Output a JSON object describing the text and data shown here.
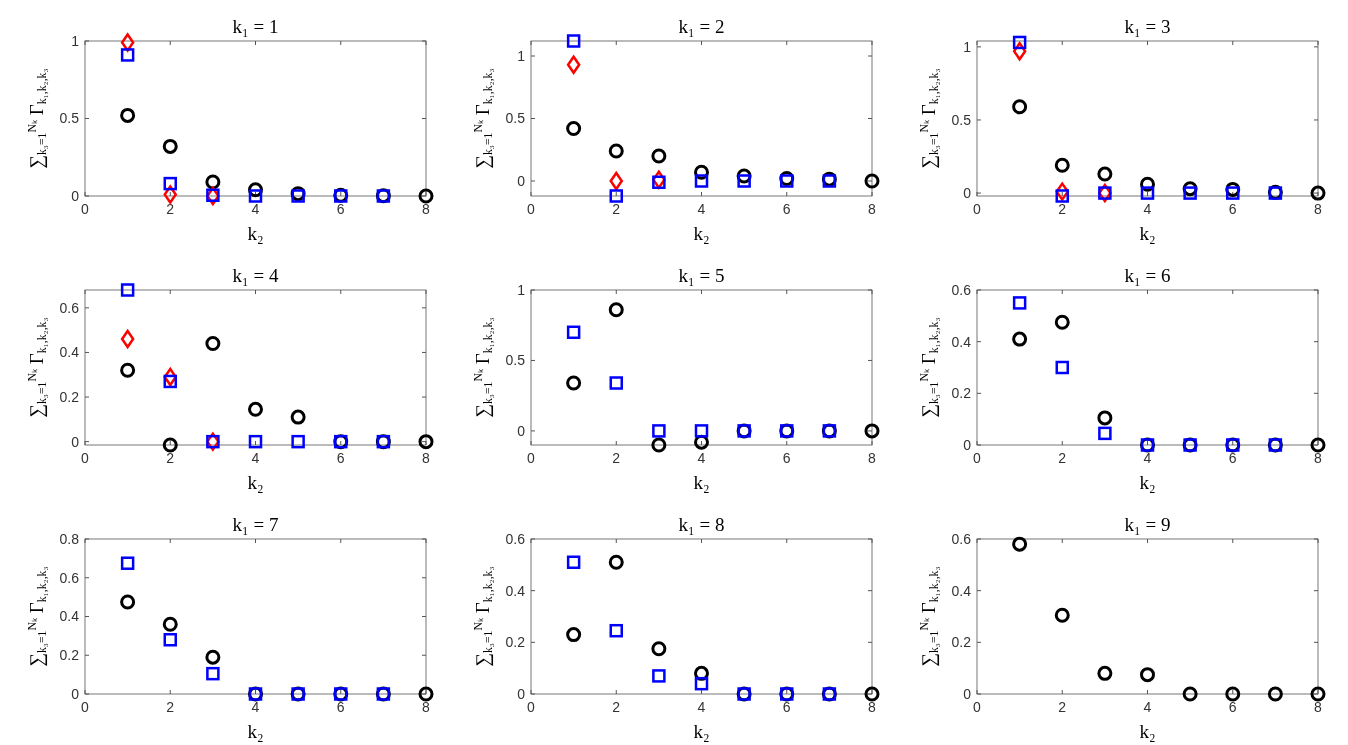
{
  "chart_data": [
    {
      "type": "scatter",
      "title": "k₁ = 1",
      "xlabel": "k₂",
      "ylabel": "∑$_{k₃=1}$$^{Nₖ}$ Γ$_{k₁,k₂,k₃}$",
      "xlim": [
        0,
        8
      ],
      "xticks": [
        0,
        2,
        4,
        6,
        8
      ],
      "ylim": [
        0,
        1
      ],
      "yticks": [
        0,
        0.5,
        1
      ],
      "series": [
        {
          "marker": "circle",
          "color": "#000000",
          "x": [
            1,
            2,
            3,
            4,
            5,
            6,
            7,
            8
          ],
          "values": [
            0.52,
            0.32,
            0.09,
            0.04,
            0.015,
            0.005,
            0.002,
            0
          ]
        },
        {
          "marker": "diamond",
          "color": "#ff0000",
          "x": [
            1,
            2,
            3
          ],
          "values": [
            0.99,
            0.01,
            0
          ]
        },
        {
          "marker": "square",
          "color": "#0000ff",
          "x": [
            1,
            2,
            3,
            4,
            5,
            6,
            7
          ],
          "values": [
            0.91,
            0.08,
            0.005,
            0,
            0,
            0,
            0
          ]
        }
      ]
    },
    {
      "type": "scatter",
      "title": "k₁ = 2",
      "xlabel": "k₂",
      "ylabel": "∑$_{k₃=1}$$^{Nₖ}$ Γ$_{k₁,k₂,k₃}$",
      "xlim": [
        0,
        8
      ],
      "xticks": [
        0,
        2,
        4,
        6,
        8
      ],
      "ylim": [
        -0.12,
        1.12
      ],
      "yticks": [
        0,
        0.5,
        1
      ],
      "series": [
        {
          "marker": "circle",
          "color": "#000000",
          "x": [
            1,
            2,
            3,
            4,
            5,
            6,
            7,
            8
          ],
          "values": [
            0.42,
            0.24,
            0.2,
            0.07,
            0.04,
            0.02,
            0.015,
            0
          ]
        },
        {
          "marker": "diamond",
          "color": "#ff0000",
          "x": [
            1,
            2,
            3
          ],
          "values": [
            0.93,
            0,
            0.01
          ]
        },
        {
          "marker": "square",
          "color": "#0000ff",
          "x": [
            1,
            2,
            3,
            4,
            5,
            6,
            7
          ],
          "values": [
            1.12,
            -0.12,
            -0.01,
            0,
            0,
            0,
            0
          ]
        }
      ]
    },
    {
      "type": "scatter",
      "title": "k₁ = 3",
      "xlabel": "k₂",
      "ylabel": "∑$_{k₃=1}$$^{Nₖ}$ Γ$_{k₁,k₂,k₃}$",
      "xlim": [
        0,
        8
      ],
      "xticks": [
        0,
        2,
        4,
        6,
        8
      ],
      "ylim": [
        -0.02,
        1.04
      ],
      "yticks": [
        0,
        0.5,
        1
      ],
      "series": [
        {
          "marker": "circle",
          "color": "#000000",
          "x": [
            1,
            2,
            3,
            4,
            5,
            6,
            7,
            8
          ],
          "values": [
            0.59,
            0.19,
            0.13,
            0.06,
            0.03,
            0.025,
            0.005,
            0
          ]
        },
        {
          "marker": "diamond",
          "color": "#ff0000",
          "x": [
            1,
            2,
            3
          ],
          "values": [
            0.97,
            0.01,
            0
          ]
        },
        {
          "marker": "square",
          "color": "#0000ff",
          "x": [
            1,
            2,
            3,
            4,
            5,
            6,
            7
          ],
          "values": [
            1.03,
            -0.02,
            0,
            0,
            0,
            0,
            0
          ]
        }
      ]
    },
    {
      "type": "scatter",
      "title": "k₁ = 4",
      "xlabel": "k₂",
      "ylabel": "∑$_{k₃=1}$$^{Nₖ}$ Γ$_{k₁,k₂,k₃}$",
      "xlim": [
        0,
        8
      ],
      "xticks": [
        0,
        2,
        4,
        6,
        8
      ],
      "ylim": [
        -0.015,
        0.68
      ],
      "yticks": [
        0,
        0.2,
        0.4,
        0.6
      ],
      "series": [
        {
          "marker": "circle",
          "color": "#000000",
          "x": [
            1,
            2,
            3,
            4,
            5,
            6,
            7,
            8
          ],
          "values": [
            0.32,
            -0.015,
            0.44,
            0.145,
            0.11,
            0,
            0,
            0
          ]
        },
        {
          "marker": "diamond",
          "color": "#ff0000",
          "x": [
            1,
            2,
            3
          ],
          "values": [
            0.46,
            0.29,
            0
          ]
        },
        {
          "marker": "square",
          "color": "#0000ff",
          "x": [
            1,
            2,
            3,
            4,
            5,
            6,
            7
          ],
          "values": [
            0.68,
            0.27,
            0,
            0,
            0,
            0,
            0
          ]
        }
      ]
    },
    {
      "type": "scatter",
      "title": "k₁ = 5",
      "xlabel": "k₂",
      "ylabel": "∑$_{k₃=1}$$^{Nₖ}$ Γ$_{k₁,k₂,k₃}$",
      "xlim": [
        0,
        8
      ],
      "xticks": [
        0,
        2,
        4,
        6,
        8
      ],
      "ylim": [
        -0.1,
        1
      ],
      "yticks": [
        0,
        0.5,
        1
      ],
      "series": [
        {
          "marker": "circle",
          "color": "#000000",
          "x": [
            1,
            2,
            3,
            4,
            5,
            6,
            7,
            8
          ],
          "values": [
            0.34,
            0.86,
            -0.1,
            -0.08,
            0,
            0,
            0,
            0
          ]
        },
        {
          "marker": "square",
          "color": "#0000ff",
          "x": [
            1,
            2,
            3,
            4,
            5,
            6,
            7
          ],
          "values": [
            0.7,
            0.34,
            0,
            0,
            0,
            0,
            0
          ]
        }
      ]
    },
    {
      "type": "scatter",
      "title": "k₁ = 6",
      "xlabel": "k₂",
      "ylabel": "∑$_{k₃=1}$$^{Nₖ}$ Γ$_{k₁,k₂,k₃}$",
      "xlim": [
        0,
        8
      ],
      "xticks": [
        0,
        2,
        4,
        6,
        8
      ],
      "ylim": [
        0,
        0.6
      ],
      "yticks": [
        0,
        0.2,
        0.4,
        0.6
      ],
      "series": [
        {
          "marker": "circle",
          "color": "#000000",
          "x": [
            1,
            2,
            3,
            4,
            5,
            6,
            7,
            8
          ],
          "values": [
            0.41,
            0.475,
            0.105,
            0,
            0,
            0,
            0,
            0
          ]
        },
        {
          "marker": "square",
          "color": "#0000ff",
          "x": [
            1,
            2,
            3,
            4,
            5,
            6,
            7
          ],
          "values": [
            0.55,
            0.3,
            0.045,
            0,
            0,
            0,
            0
          ]
        }
      ]
    },
    {
      "type": "scatter",
      "title": "k₁ = 7",
      "xlabel": "k₂",
      "ylabel": "∑$_{k₃=1}$$^{Nₖ}$ Γ$_{k₁,k₂,k₃}$",
      "xlim": [
        0,
        8
      ],
      "xticks": [
        0,
        2,
        4,
        6,
        8
      ],
      "ylim": [
        0,
        0.8
      ],
      "yticks": [
        0,
        0.2,
        0.4,
        0.6,
        0.8
      ],
      "series": [
        {
          "marker": "circle",
          "color": "#000000",
          "x": [
            1,
            2,
            3,
            4,
            5,
            6,
            7,
            8
          ],
          "values": [
            0.475,
            0.36,
            0.19,
            0,
            0,
            0,
            0,
            0
          ]
        },
        {
          "marker": "square",
          "color": "#0000ff",
          "x": [
            1,
            2,
            3,
            4,
            5,
            6,
            7
          ],
          "values": [
            0.675,
            0.28,
            0.105,
            0,
            0,
            0,
            0
          ]
        }
      ]
    },
    {
      "type": "scatter",
      "title": "k₁ = 8",
      "xlabel": "k₂",
      "ylabel": "∑$_{k₃=1}$$^{Nₖ}$ Γ$_{k₁,k₂,k₃}$",
      "xlim": [
        0,
        8
      ],
      "xticks": [
        0,
        2,
        4,
        6,
        8
      ],
      "ylim": [
        0,
        0.6
      ],
      "yticks": [
        0,
        0.2,
        0.4,
        0.6
      ],
      "series": [
        {
          "marker": "circle",
          "color": "#000000",
          "x": [
            1,
            2,
            3,
            4,
            5,
            6,
            7,
            8
          ],
          "values": [
            0.23,
            0.51,
            0.175,
            0.08,
            0,
            0,
            0,
            0
          ]
        },
        {
          "marker": "square",
          "color": "#0000ff",
          "x": [
            1,
            2,
            3,
            4,
            5,
            6,
            7
          ],
          "values": [
            0.51,
            0.245,
            0.07,
            0.04,
            0,
            0,
            0
          ]
        }
      ]
    },
    {
      "type": "scatter",
      "title": "k₁ = 9",
      "xlabel": "k₂",
      "ylabel": "∑$_{k₃=1}$$^{Nₖ}$ Γ$_{k₁,k₂,k₃}$",
      "xlim": [
        0,
        8
      ],
      "xticks": [
        0,
        2,
        4,
        6,
        8
      ],
      "ylim": [
        0,
        0.6
      ],
      "yticks": [
        0,
        0.2,
        0.4,
        0.6
      ],
      "series": [
        {
          "marker": "circle",
          "color": "#000000",
          "x": [
            1,
            2,
            3,
            4,
            5,
            6,
            7,
            8
          ],
          "values": [
            0.58,
            0.305,
            0.08,
            0.075,
            0,
            0,
            0,
            0
          ]
        }
      ]
    }
  ]
}
